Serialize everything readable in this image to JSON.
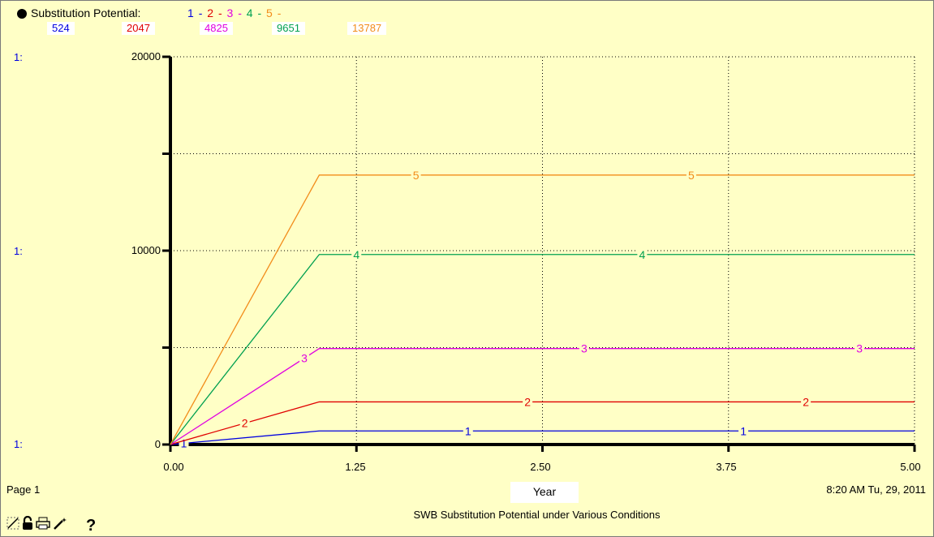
{
  "legend": {
    "title": "Substitution Potential:",
    "sequence": [
      {
        "text": "1",
        "color": "#0000E0"
      },
      {
        "text": "-",
        "color": "#0000E0"
      },
      {
        "text": "2",
        "color": "#E00000"
      },
      {
        "text": "-",
        "color": "#E00000"
      },
      {
        "text": "3",
        "color": "#E000E0"
      },
      {
        "text": "-",
        "color": "#E000E0"
      },
      {
        "text": "4",
        "color": "#00A050"
      },
      {
        "text": "-",
        "color": "#00A050"
      },
      {
        "text": "5",
        "color": "#F28C1A"
      },
      {
        "text": "-",
        "color": "#F28C1A"
      }
    ],
    "current_values": [
      "524",
      "2047",
      "4825",
      "9651",
      "13787"
    ]
  },
  "axis_prefix": "1:",
  "footer": {
    "page": "Page 1",
    "xlabel": "Year",
    "timestamp": "8:20 AM   Tu, 29, 2011",
    "title": "SWB Substitution Potential under Various Conditions"
  },
  "toolbar": {
    "icons": [
      "pin-icon",
      "lock-icon",
      "print-icon",
      "magic-wand-icon",
      "help-icon"
    ],
    "help_label": "?"
  },
  "chart_data": {
    "type": "line",
    "title": "SWB Substitution Potential under Various Conditions",
    "xlabel": "Year",
    "ylabel": "",
    "xlim": [
      0,
      5
    ],
    "ylim": [
      0,
      20000
    ],
    "x_ticks": [
      "0.00",
      "1.25",
      "2.50",
      "3.75",
      "5.00"
    ],
    "y_ticks": [
      "0",
      "10000",
      "20000"
    ],
    "grid": true,
    "legend_position": "top-left",
    "series": [
      {
        "name": "1",
        "color": "#0000E0",
        "x": [
          0,
          1,
          5
        ],
        "y": [
          0,
          700,
          700
        ]
      },
      {
        "name": "2",
        "color": "#E00000",
        "x": [
          0,
          1,
          5
        ],
        "y": [
          0,
          2200,
          2200
        ]
      },
      {
        "name": "3",
        "color": "#E000E0",
        "x": [
          0,
          1,
          5
        ],
        "y": [
          0,
          4950,
          4950
        ]
      },
      {
        "name": "4",
        "color": "#00A050",
        "x": [
          0,
          1,
          5
        ],
        "y": [
          0,
          9800,
          9800
        ]
      },
      {
        "name": "5",
        "color": "#F28C1A",
        "x": [
          0,
          1,
          5
        ],
        "y": [
          0,
          13900,
          13900
        ]
      }
    ]
  }
}
